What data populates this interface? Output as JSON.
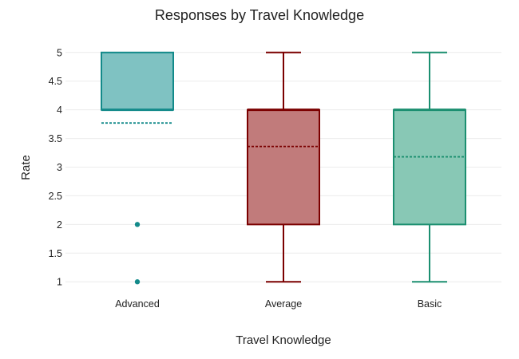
{
  "chart_data": {
    "type": "box",
    "title": "Responses by Travel Knowledge",
    "xlabel": "Travel Knowledge",
    "ylabel": "Rate",
    "ylim": [
      0.85,
      5.15
    ],
    "yticks": [
      1,
      1.5,
      2,
      2.5,
      3,
      3.5,
      4,
      4.5,
      5
    ],
    "ytick_labels": [
      "1",
      "1.5",
      "2",
      "2.5",
      "3",
      "3.5",
      "4",
      "4.5",
      "5"
    ],
    "grid": true,
    "legend": "none",
    "categories": [
      "Advanced",
      "Average",
      "Basic"
    ],
    "boxes": [
      {
        "category": "Advanced",
        "lower_whisker": 4,
        "q1": 4,
        "median": 4,
        "q3": 5,
        "upper_whisker": 5,
        "mean": 3.77,
        "outliers": [
          2,
          1
        ],
        "color": "#138a8a",
        "fill": "#7fc2c2"
      },
      {
        "category": "Average",
        "lower_whisker": 1,
        "q1": 2,
        "median": 4,
        "q3": 4,
        "upper_whisker": 5,
        "mean": 3.36,
        "outliers": [],
        "color": "#7b0000",
        "fill": "#c17b7b"
      },
      {
        "category": "Basic",
        "lower_whisker": 1,
        "q1": 2,
        "median": 4,
        "q3": 4,
        "upper_whisker": 5,
        "mean": 3.18,
        "outliers": [],
        "color": "#1b8f70",
        "fill": "#88c8b5"
      }
    ]
  }
}
